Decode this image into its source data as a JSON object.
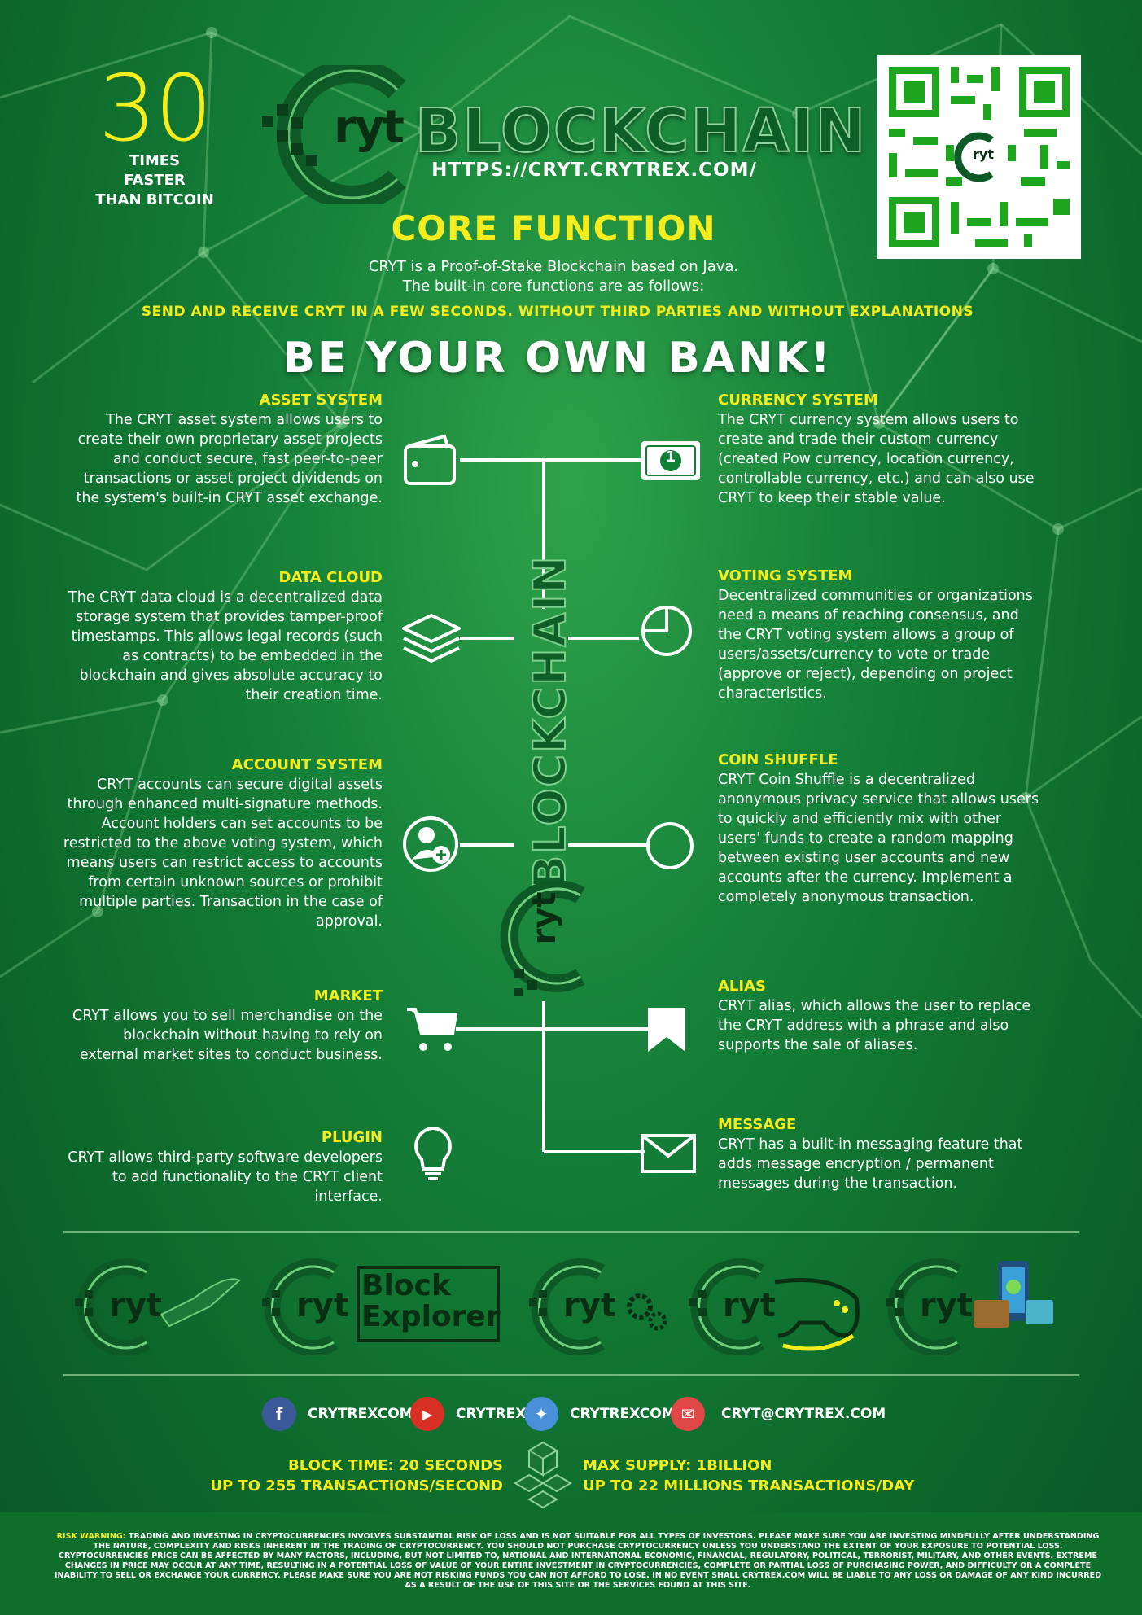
{
  "header": {
    "big_number": "30",
    "big_number_caption_1": "TIMES",
    "big_number_caption_2": "FASTER",
    "big_number_caption_3": "THAN BITCOIN",
    "logo_prefix": "ryt",
    "logo_word": "BLOCKCHAIN",
    "url": "HTTPS://CRYT.CRYTREX.COM/",
    "qr_center_text": "ryt"
  },
  "core": {
    "title": "CORE FUNCTION",
    "line1": "CRYT is a Proof-of-Stake Blockchain based on Java.",
    "line2": "The built-in core functions are as follows:",
    "send_line": "SEND AND RECEIVE CRYT IN A FEW SECONDS. WITHOUT THIRD PARTIES AND WITHOUT EXPLANATIONS",
    "headline": "BE YOUR OWN BANK!"
  },
  "center_vertical_word": "BLOCKCHAIN",
  "center_logo_text": "ryt",
  "features_left": [
    {
      "title": "ASSET SYSTEM",
      "icon": "wallet-icon",
      "text": "The CRYT asset system allows users to create their own proprietary asset projects and conduct secure, fast peer-to-peer transactions or asset project dividends on the system's built-in CRYT asset exchange."
    },
    {
      "title": "DATA CLOUD",
      "icon": "layers-icon",
      "text": "The CRYT data cloud is a decentralized data storage system that provides tamper-proof timestamps. This allows legal records (such as contracts) to be embedded in the blockchain and gives absolute accuracy to their creation time."
    },
    {
      "title": "ACCOUNT SYSTEM",
      "icon": "add-user-icon",
      "text": "CRYT accounts can secure digital assets through enhanced multi-signature methods. Account holders can set accounts to be restricted to the above voting system, which means users can restrict access to accounts from certain unknown sources or prohibit multiple parties. Transaction in the case of approval."
    },
    {
      "title": "MARKET",
      "icon": "cart-icon",
      "text": "CRYT allows you to sell merchandise on the blockchain without having to rely on external market sites to conduct business."
    },
    {
      "title": "PLUGIN",
      "icon": "lightbulb-icon",
      "text": "CRYT allows third-party software developers to add functionality to the CRYT client interface."
    }
  ],
  "features_right": [
    {
      "title": "CURRENCY SYSTEM",
      "icon": "banknote-icon",
      "note_label": "1",
      "text": "The CRYT currency system allows users to create and trade their custom currency (created Pow currency, location currency, controllable currency, etc.) and can also use CRYT to keep their stable value."
    },
    {
      "title": "VOTING SYSTEM",
      "icon": "pie-chart-icon",
      "text": "Decentralized communities or organizations need a means of reaching consensus, and the CRYT voting system allows a group of users/assets/currency to vote or trade (approve or reject), depending on project characteristics."
    },
    {
      "title": "COIN SHUFFLE",
      "icon": "circle-icon",
      "text": "CRYT Coin Shuffle is a decentralized anonymous privacy service that allows users to quickly and efficiently mix with other users' funds to create a random mapping between existing user accounts and new accounts after the currency. Implement a completely anonymous transaction."
    },
    {
      "title": "ALIAS",
      "icon": "bookmark-icon",
      "text": "CRYT alias, which allows the user to replace the CRYT address with a phrase and also supports the sale of aliases."
    },
    {
      "title": "MESSAGE",
      "icon": "envelope-icon",
      "text": "CRYT has a built-in messaging feature that adds message encryption / permanent messages during the transaction."
    }
  ],
  "bottom_logos": {
    "logo_text": "ryt",
    "explorer_line1": "Block",
    "explorer_line2": "Explorer"
  },
  "social": [
    {
      "icon": "facebook-icon",
      "glyph": "f",
      "color": "#3b5998",
      "label": "CRYTREXCOM"
    },
    {
      "icon": "youtube-icon",
      "glyph": "▶",
      "color": "#d93025",
      "label": "CRYTREX"
    },
    {
      "icon": "twitter-icon",
      "glyph": "✦",
      "color": "#4a90d9",
      "label": "CRYTREXCOM"
    },
    {
      "icon": "email-icon",
      "glyph": "✉",
      "color": "#e04747",
      "label": "CRYT@CRYTREX.COM"
    }
  ],
  "stats": {
    "left_1": "BLOCK TIME: 20 SECONDS",
    "left_2": "UP TO 255 TRANSACTIONS/SECOND",
    "right_1": "MAX SUPPLY: 1BILLION",
    "right_2": "UP TO 22 MILLIONS TRANSACTIONS/DAY"
  },
  "risk": {
    "label": "RISK WARNING:",
    "text": " TRADING AND INVESTING IN CRYPTOCURRENCIES INVOLVES SUBSTANTIAL RISK OF LOSS AND IS NOT SUITABLE FOR ALL TYPES OF INVESTORS. PLEASE MAKE SURE YOU ARE INVESTING MINDFULLY AFTER UNDERSTANDING THE NATURE, COMPLEXITY AND RISKS INHERENT IN THE TRADING OF CRYPTOCURRENCY. YOU SHOULD NOT PURCHASE CRYPTOCURRENCY UNLESS YOU UNDERSTAND THE EXTENT OF YOUR EXPOSURE TO POTENTIAL LOSS. CRYPTOCURRENCIES PRICE CAN BE AFFECTED BY MANY FACTORS, INCLUDING, BUT NOT LIMITED TO, NATIONAL AND INTERNATIONAL ECONOMIC, FINANCIAL, REGULATORY, POLITICAL, TERRORIST, MILITARY, AND OTHER EVENTS. EXTREME CHANGES IN PRICE MAY OCCUR AT ANY TIME, RESULTING IN A POTENTIAL LOSS OF VALUE OF YOUR ENTIRE INVESTMENT IN CRYPTOCURRENCIES, COMPLETE OR PARTIAL LOSS OF PURCHASING POWER, AND DIFFICULTY OR A COMPLETE INABILITY TO SELL OR EXCHANGE YOUR CURRENCY. PLEASE MAKE SURE YOU ARE NOT RISKING FUNDS YOU CAN NOT AFFORD TO LOSE. IN NO EVENT SHALL CRYTREX.COM WILL BE LIABLE TO ANY LOSS OR DAMAGE OF ANY KIND INCURRED AS A RESULT OF THE USE OF THIS SITE OR THE SERVICES FOUND AT THIS SITE."
  }
}
